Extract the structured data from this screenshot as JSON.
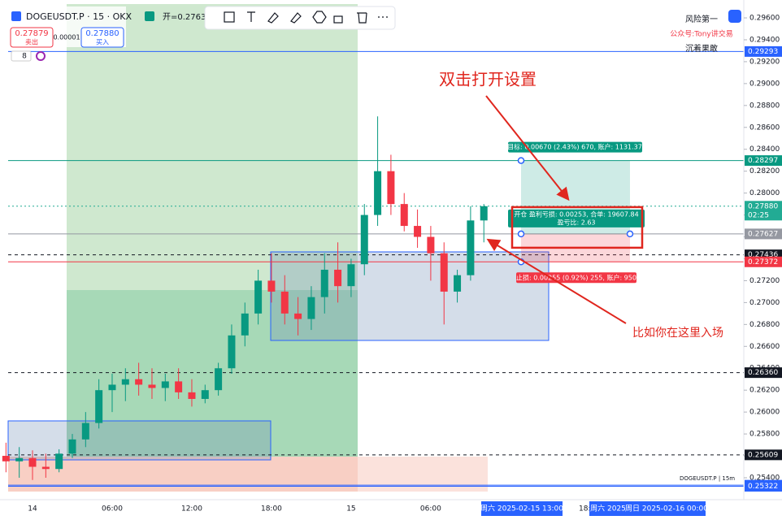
{
  "header": {
    "symbol": "DOGEUSDT.P · 15 · OKX",
    "open": "开=0.27632",
    "sell_price": "0.27879",
    "sell": "卖出",
    "spread": "0.00001",
    "buy_price": "0.27880",
    "buy": "买入",
    "indicator_count": "8"
  },
  "watermark": {
    "line1": "风险第一",
    "line2": "公众号:Tony讲交易",
    "line3": "沉着果敢"
  },
  "annotations": {
    "settings": "双击打开设置",
    "entry": "比如你在这里入场"
  },
  "position": {
    "target": "目标: 0.00670 (2.43%) 670, 账户: 1131.37",
    "open": "开仓 盈利亏损: 0.00253, 合单: 19607.84",
    "ratio": "盈亏比: 2.63",
    "stop": "止损: 0.00255 (0.92%) 255, 账户: 950"
  },
  "footer": {
    "symbol_tag": "DOGEUSDT.P | 15m",
    "time1": "周六 2025-02-15  13:00",
    "time2": "18:",
    "time3": "周六 2025",
    "time4": "周日 2025-02-16  00:00"
  },
  "chart_data": {
    "type": "candlestick",
    "up_color": "#089981",
    "down_color": "#f23645",
    "categories": [
      null,
      null,
      "14",
      null,
      null,
      null,
      null,
      null,
      "06:00",
      null,
      null,
      null,
      null,
      null,
      "12:00",
      null,
      null,
      null,
      null,
      null,
      "18:00",
      null,
      null,
      null,
      null,
      null,
      "15",
      null,
      null,
      null,
      null,
      null,
      "06:00",
      null,
      null,
      null,
      null
    ],
    "open": [
      0.256,
      0.2555,
      0.2558,
      0.255,
      0.2548,
      0.2562,
      0.2575,
      0.259,
      0.262,
      0.2625,
      0.263,
      0.2625,
      0.2622,
      0.2628,
      0.2618,
      0.2612,
      0.262,
      0.264,
      0.267,
      0.269,
      0.272,
      0.271,
      0.269,
      0.2685,
      0.2705,
      0.273,
      0.2715,
      0.2735,
      0.278,
      0.282,
      0.279,
      0.277,
      0.276,
      0.2745,
      0.271,
      0.2725,
      0.2775
    ],
    "high": [
      0.2572,
      0.2568,
      0.2565,
      0.2562,
      0.2566,
      0.258,
      0.26,
      0.263,
      0.2635,
      0.264,
      0.2645,
      0.264,
      0.2635,
      0.264,
      0.263,
      0.2625,
      0.2645,
      0.268,
      0.27,
      0.273,
      0.2745,
      0.2725,
      0.2705,
      0.2715,
      0.2745,
      0.2755,
      0.274,
      0.279,
      0.287,
      0.2835,
      0.28,
      0.2785,
      0.277,
      0.2755,
      0.273,
      0.2788,
      0.279
    ],
    "low": [
      0.2545,
      0.254,
      0.2538,
      0.254,
      0.2545,
      0.2558,
      0.2568,
      0.2585,
      0.26,
      0.261,
      0.2615,
      0.2612,
      0.261,
      0.2612,
      0.2605,
      0.2608,
      0.2615,
      0.2635,
      0.266,
      0.268,
      0.27,
      0.268,
      0.267,
      0.2675,
      0.269,
      0.27,
      0.2705,
      0.2725,
      0.277,
      0.278,
      0.2765,
      0.275,
      0.272,
      0.268,
      0.27,
      0.272,
      0.2755
    ],
    "close": [
      0.2555,
      0.2558,
      0.255,
      0.2548,
      0.2562,
      0.2575,
      0.259,
      0.262,
      0.2625,
      0.263,
      0.2625,
      0.2622,
      0.2628,
      0.2618,
      0.2612,
      0.262,
      0.264,
      0.267,
      0.269,
      0.272,
      0.271,
      0.269,
      0.2685,
      0.2705,
      0.273,
      0.2715,
      0.2735,
      0.278,
      0.282,
      0.279,
      0.277,
      0.276,
      0.2745,
      0.271,
      0.2725,
      0.2775,
      0.2788
    ],
    "ylim": [
      0.2521,
      0.2973
    ],
    "yticks": [
      {
        "value": 0.296,
        "label": "0.29600"
      },
      {
        "value": 0.294,
        "label": "0.29400"
      },
      {
        "value": 0.292,
        "label": "0.29200"
      },
      {
        "value": 0.29,
        "label": "0.29000"
      },
      {
        "value": 0.288,
        "label": "0.28800"
      },
      {
        "value": 0.286,
        "label": "0.28600"
      },
      {
        "value": 0.284,
        "label": "0.28400"
      },
      {
        "value": 0.282,
        "label": "0.28200"
      },
      {
        "value": 0.28,
        "label": "0.28000"
      },
      {
        "value": 0.278,
        "label": "0.27800"
      },
      {
        "value": 0.276,
        "label": "0.27600"
      },
      {
        "value": 0.274,
        "label": "0.27400"
      },
      {
        "value": 0.272,
        "label": "0.27200"
      },
      {
        "value": 0.27,
        "label": "0.27000"
      },
      {
        "value": 0.268,
        "label": "0.26800"
      },
      {
        "value": 0.266,
        "label": "0.26600"
      },
      {
        "value": 0.264,
        "label": "0.26400"
      },
      {
        "value": 0.262,
        "label": "0.26200"
      },
      {
        "value": 0.26,
        "label": "0.26000"
      },
      {
        "value": 0.258,
        "label": "0.25800"
      },
      {
        "value": 0.256,
        "label": "0.25600"
      },
      {
        "value": 0.254,
        "label": "0.25400"
      }
    ],
    "price_lines": [
      {
        "value": 0.29293,
        "label": "0.29293",
        "color": "#2962ff"
      },
      {
        "value": 0.28297,
        "label": "0.28297",
        "color": "#089981"
      },
      {
        "value": 0.2788,
        "label": "0.27880",
        "sub": "02:25",
        "color": "#22ab94"
      },
      {
        "value": 0.27627,
        "label": "0.27627",
        "color": "#9598a1"
      },
      {
        "value": 0.27436,
        "label": "0.27436",
        "color": "#131722"
      },
      {
        "value": 0.27372,
        "label": "0.27372",
        "color": "#f23645"
      },
      {
        "value": 0.2636,
        "label": "0.26360",
        "color": "#131722"
      },
      {
        "value": 0.25609,
        "label": "0.25609",
        "color": "#131722"
      },
      {
        "value": 0.25332,
        "label": "0.25332",
        "color": "#2962ff"
      },
      {
        "value": 0.25322,
        "label": "0.25322",
        "color": "#2962ff"
      }
    ]
  }
}
